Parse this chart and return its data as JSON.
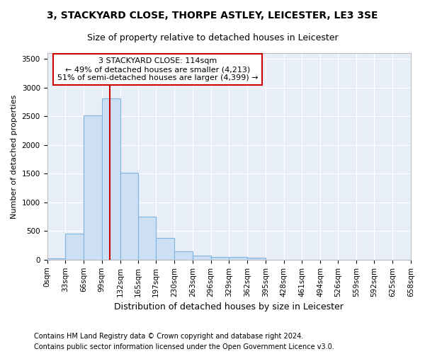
{
  "title1": "3, STACKYARD CLOSE, THORPE ASTLEY, LEICESTER, LE3 3SE",
  "title2": "Size of property relative to detached houses in Leicester",
  "xlabel": "Distribution of detached houses by size in Leicester",
  "ylabel": "Number of detached properties",
  "footnote1": "Contains HM Land Registry data © Crown copyright and database right 2024.",
  "footnote2": "Contains public sector information licensed under the Open Government Licence v3.0.",
  "annotation_line1": "3 STACKYARD CLOSE: 114sqm",
  "annotation_line2": "← 49% of detached houses are smaller (4,213)",
  "annotation_line3": "51% of semi-detached houses are larger (4,399) →",
  "property_size": 114,
  "bin_edges": [
    0,
    33,
    66,
    99,
    132,
    165,
    197,
    230,
    263,
    296,
    329,
    362,
    395,
    428,
    461,
    494,
    526,
    559,
    592,
    625,
    658
  ],
  "bar_heights": [
    20,
    460,
    2510,
    2810,
    1520,
    750,
    380,
    140,
    70,
    50,
    50,
    30,
    0,
    0,
    0,
    0,
    0,
    0,
    0,
    0
  ],
  "bar_color": "#ccdff5",
  "bar_edge_color": "#7fb3e0",
  "vline_color": "#cc0000",
  "annotation_box_color": "#cc0000",
  "background_color": "#e8eef8",
  "grid_color": "#ffffff",
  "fig_background": "#ffffff",
  "ylim": [
    0,
    3600
  ],
  "yticks": [
    0,
    500,
    1000,
    1500,
    2000,
    2500,
    3000,
    3500
  ],
  "title1_fontsize": 10,
  "title2_fontsize": 9,
  "xlabel_fontsize": 9,
  "ylabel_fontsize": 8,
  "tick_fontsize": 7.5,
  "footnote_fontsize": 7,
  "annotation_fontsize": 8
}
